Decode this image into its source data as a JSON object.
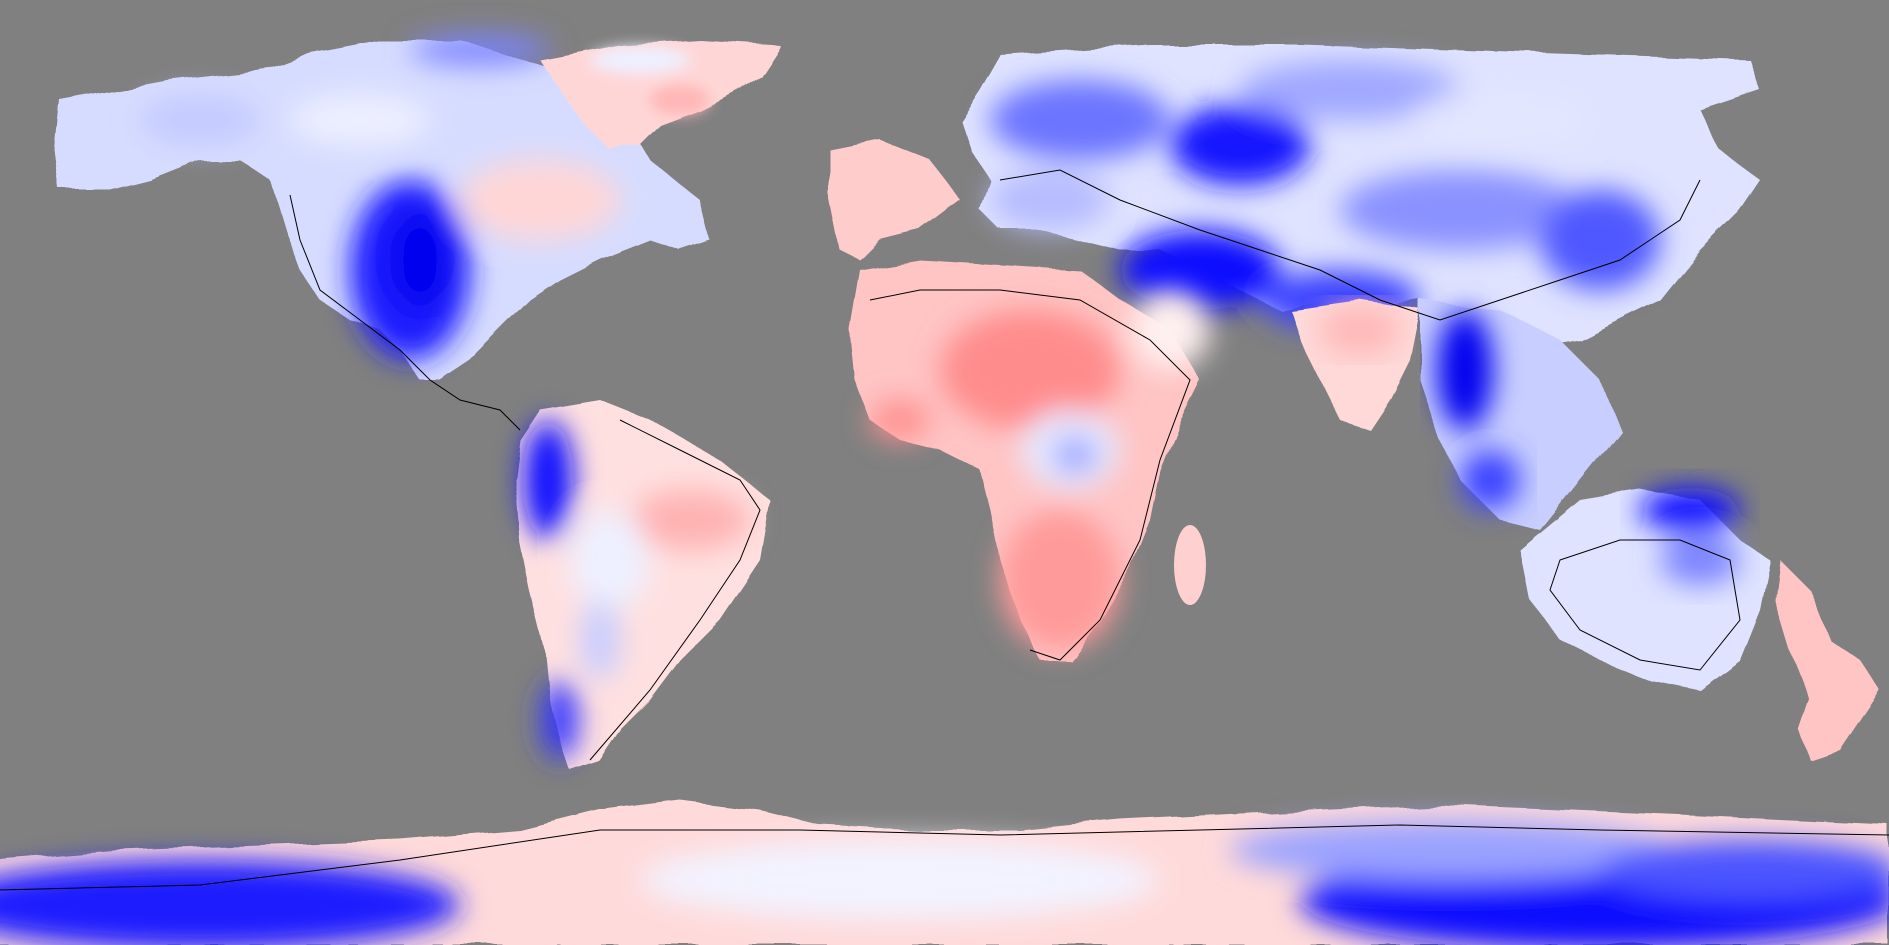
{
  "map": {
    "projection": "equirectangular",
    "background_color": "#808080",
    "color_scale": {
      "negative": "#0000ff",
      "neutral": "#ffffff",
      "positive": "#ff4d4d"
    },
    "coastline_color": "#000000"
  }
}
